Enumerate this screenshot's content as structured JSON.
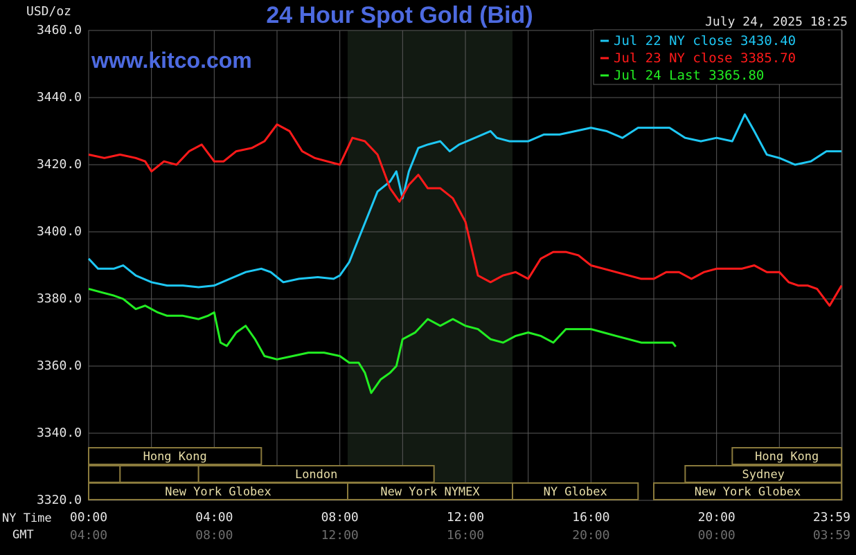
{
  "header": {
    "unit_label": "USD/oz",
    "title": "24 Hour Spot Gold (Bid)",
    "timestamp": "July 24, 2025 18:25",
    "website": "www.kitco.com"
  },
  "row_labels": {
    "ny": "NY Time",
    "gmt": "GMT"
  },
  "colors": {
    "background": "#000000",
    "grid": "#5a5a5a",
    "title": "#4d6ae0",
    "jul22": "#1ec8f5",
    "jul23": "#ff1a1a",
    "jul24": "#22ee22",
    "market_text": "#e9dfa8",
    "market_border": "#8a7a3c",
    "shade": "#121a12"
  },
  "chart_data": {
    "type": "line",
    "title": "24 Hour Spot Gold (Bid)",
    "ylabel": "USD/oz",
    "ylim": [
      3320,
      3460
    ],
    "xlim": [
      0,
      24
    ],
    "grid": true,
    "legend_position": "top-right",
    "y_ticks": [
      "3460.0",
      "3440.0",
      "3420.0",
      "3400.0",
      "3380.0",
      "3360.0",
      "3340.0",
      "3320.0"
    ],
    "x_ticks_ny": [
      "00:00",
      "04:00",
      "08:00",
      "12:00",
      "16:00",
      "20:00",
      "23:59"
    ],
    "x_ticks_gmt": [
      "04:00",
      "08:00",
      "12:00",
      "16:00",
      "20:00",
      "00:00",
      "03:59"
    ],
    "legend": [
      "Jul 22 NY close 3430.40",
      "Jul 23 NY close 3385.70",
      "Jul 24 Last 3365.80"
    ],
    "shaded_period": [
      8.25,
      13.5
    ],
    "series": [
      {
        "name": "Jul 22 NY close 3430.40",
        "color": "#1ec8f5",
        "x": [
          0,
          0.3,
          0.8,
          1.1,
          1.5,
          2.0,
          2.5,
          3.0,
          3.5,
          4.0,
          4.5,
          5.0,
          5.5,
          5.8,
          6.2,
          6.7,
          7.3,
          7.8,
          8.0,
          8.3,
          8.6,
          8.9,
          9.2,
          9.6,
          9.8,
          10.0,
          10.2,
          10.5,
          10.8,
          11.2,
          11.5,
          11.8,
          12.3,
          12.8,
          13.0,
          13.4,
          14.0,
          14.5,
          15.0,
          15.5,
          16.0,
          16.5,
          17.0,
          17.5,
          18.0,
          18.5,
          19.0,
          19.5,
          20.0,
          20.5,
          20.9,
          21.2,
          21.6,
          22.0,
          22.5,
          23.0,
          23.5,
          23.98
        ],
        "y": [
          3392,
          3389,
          3389,
          3390,
          3387,
          3385,
          3384,
          3384,
          3383.5,
          3384,
          3386,
          3388,
          3389,
          3388,
          3385,
          3386,
          3386.5,
          3386,
          3387,
          3391,
          3398,
          3405,
          3412,
          3415,
          3418,
          3410,
          3418,
          3425,
          3426,
          3427,
          3424,
          3426,
          3428,
          3430,
          3428,
          3427,
          3427,
          3429,
          3429,
          3430,
          3431,
          3430,
          3428,
          3431,
          3431,
          3431,
          3428,
          3427,
          3428,
          3427,
          3435,
          3430,
          3423,
          3422,
          3420,
          3421,
          3424,
          3424
        ]
      },
      {
        "name": "Jul 23 NY close 3385.70",
        "color": "#ff1a1a",
        "x": [
          0,
          0.5,
          1.0,
          1.5,
          1.8,
          2.0,
          2.4,
          2.8,
          3.2,
          3.6,
          4.0,
          4.3,
          4.7,
          5.2,
          5.6,
          6.0,
          6.4,
          6.8,
          7.2,
          7.6,
          8.0,
          8.4,
          8.8,
          9.2,
          9.6,
          9.9,
          10.2,
          10.5,
          10.8,
          11.2,
          11.6,
          12.0,
          12.2,
          12.4,
          12.8,
          13.2,
          13.6,
          14.0,
          14.4,
          14.8,
          15.2,
          15.6,
          16.0,
          16.4,
          16.8,
          17.2,
          17.6,
          18.0,
          18.4,
          18.8,
          19.2,
          19.6,
          20.0,
          20.4,
          20.8,
          21.2,
          21.6,
          22.0,
          22.3,
          22.6,
          22.9,
          23.2,
          23.6,
          23.98
        ],
        "y": [
          3423,
          3422,
          3423,
          3422,
          3421,
          3418,
          3421,
          3420,
          3424,
          3426,
          3421,
          3421,
          3424,
          3425,
          3427,
          3432,
          3430,
          3424,
          3422,
          3421,
          3420,
          3428,
          3427,
          3423,
          3413,
          3409,
          3414,
          3417,
          3413,
          3413,
          3410,
          3403,
          3395,
          3387,
          3385,
          3387,
          3388,
          3386,
          3392,
          3394,
          3394,
          3393,
          3390,
          3389,
          3388,
          3387,
          3386,
          3386,
          3388,
          3388,
          3386,
          3388,
          3389,
          3389,
          3389,
          3390,
          3388,
          3388,
          3385,
          3384,
          3384,
          3383,
          3378,
          3384
        ]
      },
      {
        "name": "Jul 24 Last 3365.80",
        "color": "#22ee22",
        "x": [
          0,
          0.4,
          0.8,
          1.1,
          1.5,
          1.8,
          2.2,
          2.5,
          3.0,
          3.5,
          3.8,
          4.0,
          4.2,
          4.4,
          4.7,
          5.0,
          5.3,
          5.6,
          6.0,
          6.5,
          7.0,
          7.5,
          8.0,
          8.3,
          8.6,
          8.8,
          9.0,
          9.3,
          9.6,
          9.8,
          10.0,
          10.4,
          10.8,
          11.2,
          11.6,
          12.0,
          12.4,
          12.8,
          13.2,
          13.6,
          14.0,
          14.4,
          14.8,
          15.2,
          15.6,
          16.0,
          16.4,
          16.8,
          17.2,
          17.6,
          18.0,
          18.4,
          18.6,
          18.7
        ],
        "y": [
          3383,
          3382,
          3381,
          3380,
          3377,
          3378,
          3376,
          3375,
          3375,
          3374,
          3375,
          3376,
          3367,
          3366,
          3370,
          3372,
          3368,
          3363,
          3362,
          3363,
          3364,
          3364,
          3363,
          3361,
          3361,
          3358,
          3352,
          3356,
          3358,
          3360,
          3368,
          3370,
          3374,
          3372,
          3374,
          3372,
          3371,
          3368,
          3367,
          3369,
          3370,
          3369,
          3367,
          3371,
          3371,
          3371,
          3370,
          3369,
          3368,
          3367,
          3367,
          3367,
          3367,
          3365.8
        ]
      }
    ],
    "market_sessions": [
      {
        "label": "Hong Kong",
        "row": 0,
        "start": 0,
        "end": 5.5
      },
      {
        "label": "Hong Kong",
        "row": 0,
        "start": 20.5,
        "end": 23.98
      },
      {
        "label": "",
        "row": 1,
        "start": 0,
        "end": 1.0
      },
      {
        "label": "",
        "row": 1,
        "start": 1.0,
        "end": 3.5
      },
      {
        "label": "London",
        "row": 1,
        "start": 3.5,
        "end": 11.0
      },
      {
        "label": "Sydney",
        "row": 1,
        "start": 19.0,
        "end": 23.98
      },
      {
        "label": "New York Globex",
        "row": 2,
        "start": 0,
        "end": 8.25
      },
      {
        "label": "New York NYMEX",
        "row": 2,
        "start": 8.25,
        "end": 13.5
      },
      {
        "label": "NY Globex",
        "row": 2,
        "start": 13.5,
        "end": 17.5
      },
      {
        "label": "New York Globex",
        "row": 2,
        "start": 18.0,
        "end": 23.98
      }
    ]
  }
}
